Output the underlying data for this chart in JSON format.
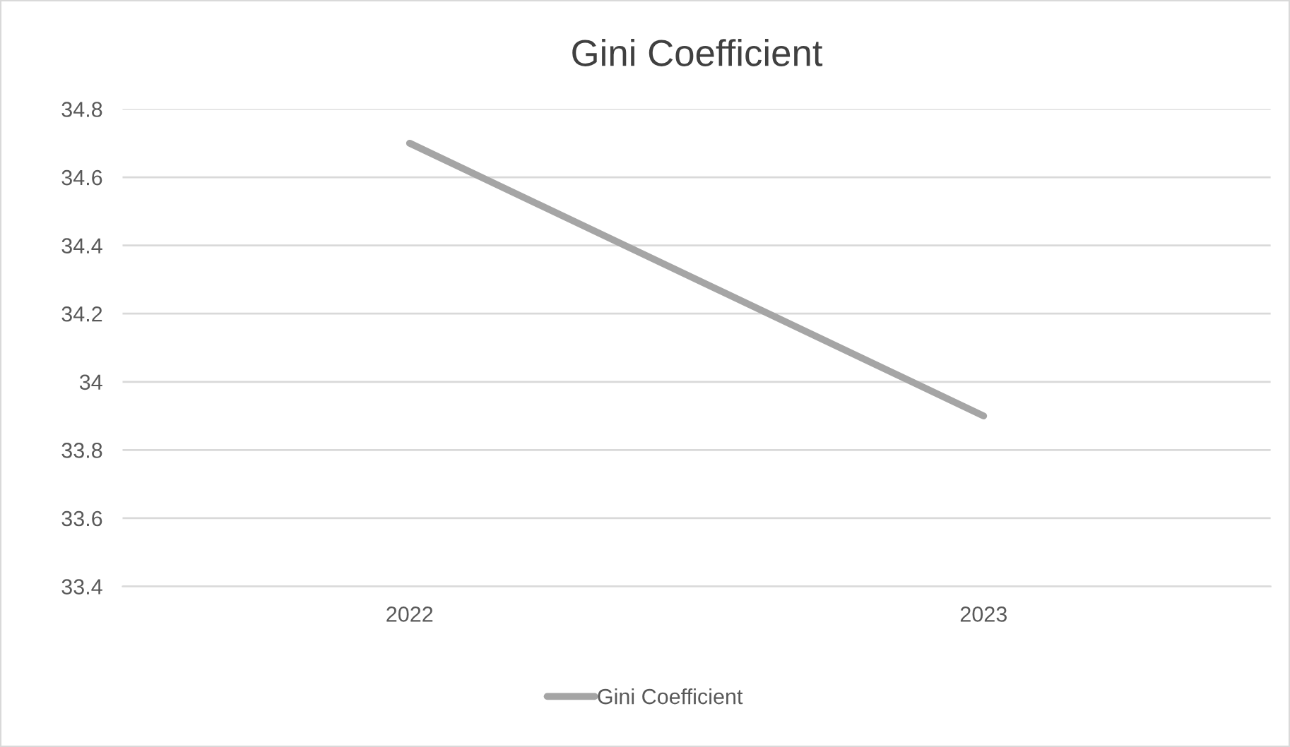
{
  "chart_data": {
    "type": "line",
    "title": "Gini Coefficient",
    "categories": [
      "2022",
      "2023"
    ],
    "series": [
      {
        "name": "Gini Coefficient",
        "color": "#a5a5a5",
        "values": [
          34.7,
          33.9
        ]
      }
    ],
    "ylim": [
      33.4,
      34.8
    ],
    "yticks": [
      33.4,
      33.6,
      33.8,
      34,
      34.2,
      34.4,
      34.6,
      34.8
    ],
    "grid": "y",
    "legend": "bottom",
    "marker": "none",
    "line_style": "solid"
  }
}
